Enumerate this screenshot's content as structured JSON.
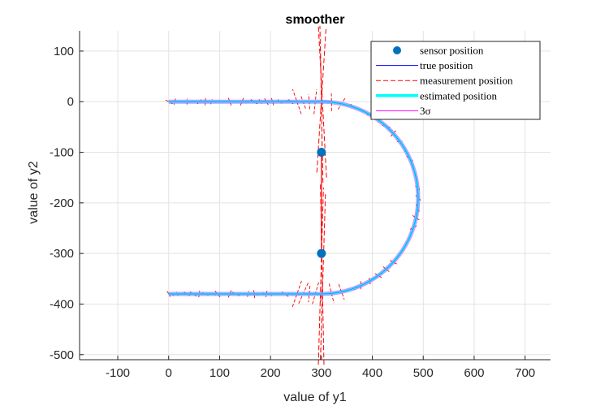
{
  "chart_data": {
    "type": "line",
    "title": "smoother",
    "xlabel": "value of y1",
    "ylabel": "value of y2",
    "xlim": [
      -175,
      750
    ],
    "ylim": [
      -510,
      140
    ],
    "xticks": [
      -100,
      0,
      100,
      200,
      300,
      400,
      500,
      600,
      700
    ],
    "yticks": [
      100,
      0,
      -100,
      -200,
      -300,
      -400,
      -500
    ],
    "xtick_labels": [
      "-100",
      "0",
      "100",
      "200",
      "300",
      "400",
      "500",
      "600",
      "700"
    ],
    "ytick_labels": [
      "100",
      "0",
      "-100",
      "-200",
      "-300",
      "-400",
      "-500"
    ],
    "grid": true,
    "legend_position": "top-right",
    "series": [
      {
        "name": "sensor position",
        "style": "marker",
        "color": "#0072BD",
        "x": [
          300,
          300
        ],
        "y": [
          -100,
          -300
        ]
      },
      {
        "name": "true position",
        "style": "solid",
        "color": "#0000FF",
        "path": "straight from (0,0) to (300,0), semicircle centered (300,-190) radius 190 bulging to x=490, straight from (300,-380) to (0,-380)"
      },
      {
        "name": "measurement position",
        "style": "dashed",
        "color": "#FF0000",
        "note": "noisy measurement rays around the true path, long rays near x=300"
      },
      {
        "name": "estimated position",
        "style": "thick",
        "color": "#00FFFF"
      },
      {
        "name": "3σ",
        "style": "solid",
        "color": "#FF00FF"
      }
    ]
  },
  "legend": {
    "items": [
      {
        "label": "sensor position",
        "color": "#0072BD",
        "kind": "marker"
      },
      {
        "label": "true position",
        "color": "#0000FF",
        "kind": "line"
      },
      {
        "label": "measurement position",
        "color": "#FF0000",
        "kind": "dashed"
      },
      {
        "label": "estimated position",
        "color": "#00FFFF",
        "kind": "thick"
      },
      {
        "label": "3σ",
        "color": "#FF00FF",
        "kind": "line"
      }
    ]
  }
}
